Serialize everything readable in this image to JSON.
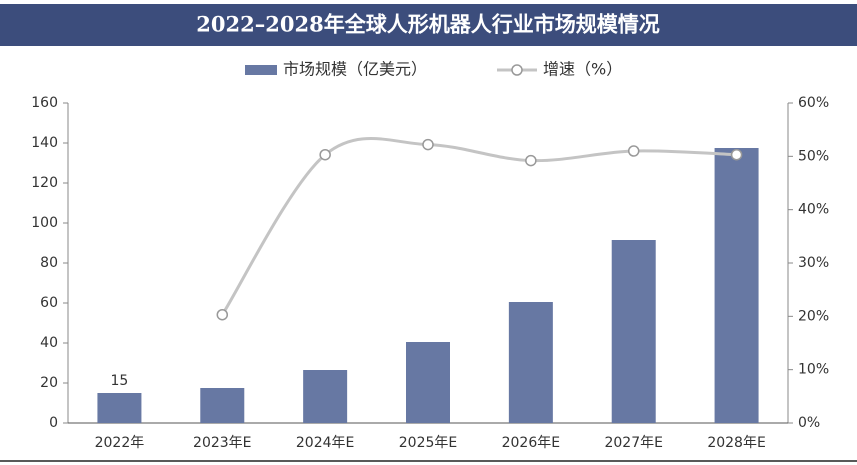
{
  "chart_data": {
    "type": "bar-line",
    "title": "2022–2028年全球人形机器人行业市场规模情况",
    "categories": [
      "2022年",
      "2023年E",
      "2024年E",
      "2025年E",
      "2026年E",
      "2027年E",
      "2028年E"
    ],
    "series": [
      {
        "name": "市场规模（亿美元）",
        "type": "bar",
        "color": "#6778a3",
        "values": [
          15,
          17.5,
          26.5,
          40.5,
          60.5,
          91.5,
          137.5
        ]
      },
      {
        "name": "增速（%）",
        "type": "line",
        "axis": "y2",
        "color": "#c4c4c4",
        "values": [
          null,
          20.3,
          50.3,
          52.2,
          49.2,
          51.0,
          50.3
        ]
      }
    ],
    "ylim": [
      0,
      160
    ],
    "yticks": [
      0,
      20,
      40,
      60,
      80,
      100,
      120,
      140,
      160
    ],
    "y2lim": [
      0,
      60
    ],
    "y2ticks": [
      {
        "value": 0,
        "label": "0%"
      },
      {
        "value": 10,
        "label": "10%"
      },
      {
        "value": 20,
        "label": "20%"
      },
      {
        "value": 30,
        "label": "30%"
      },
      {
        "value": 40,
        "label": "40%"
      },
      {
        "value": 50,
        "label": "50%"
      },
      {
        "value": 60,
        "label": "60%"
      }
    ]
  }
}
